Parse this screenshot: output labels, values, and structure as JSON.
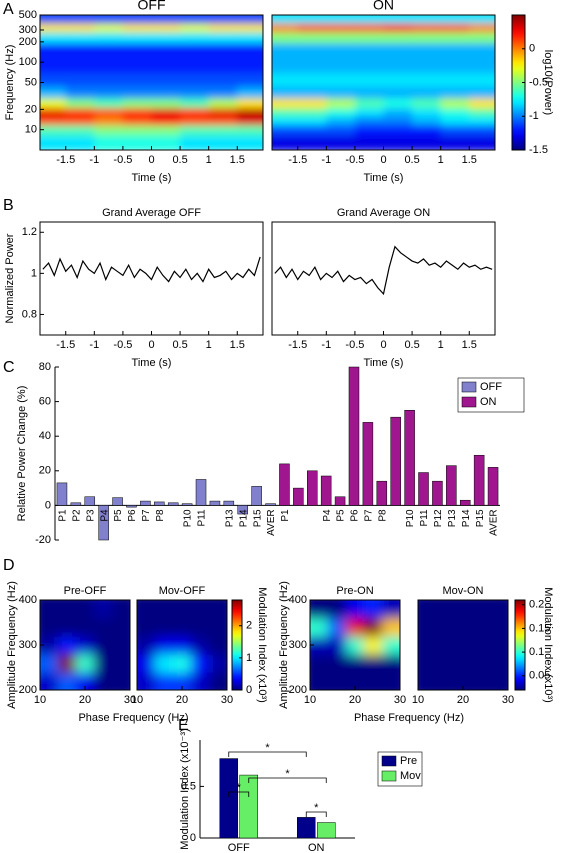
{
  "chart_data": [
    {
      "type": "heatmap",
      "panel_label": "A",
      "x": [
        -1.75,
        -1.25,
        -0.75,
        -0.25,
        0.25,
        0.75,
        1.25,
        1.75
      ],
      "y": [
        7,
        10,
        14,
        18,
        25,
        35,
        55,
        90,
        150,
        250,
        320,
        450
      ],
      "xlim": [
        -1.95,
        1.95
      ],
      "ylim": [
        5,
        500
      ],
      "ylog": true,
      "xticks": [
        -1.5,
        -1,
        -0.5,
        0,
        0.5,
        1,
        1.5
      ],
      "yticks": [
        10,
        20,
        50,
        100,
        200,
        300,
        500
      ],
      "xlabel": "Time (s)",
      "ylabel": "Frequency (Hz)",
      "panels": [
        {
          "title": "OFF",
          "z": [
            [
              -0.8,
              -0.8,
              -0.7,
              -0.7,
              -0.7,
              -0.8,
              -0.8,
              -0.8
            ],
            [
              -0.6,
              -0.6,
              -0.5,
              -0.5,
              -0.5,
              -0.6,
              -0.6,
              -0.6
            ],
            [
              0.1,
              0.1,
              0.0,
              0.1,
              0.2,
              0.1,
              0.1,
              0.3
            ],
            [
              0.3,
              0.2,
              0.1,
              0.2,
              0.3,
              0.2,
              0.3,
              0.4
            ],
            [
              -0.3,
              -0.5,
              -0.6,
              -0.5,
              -0.5,
              -0.6,
              -0.4,
              -0.2
            ],
            [
              -0.9,
              -1.0,
              -1.0,
              -1.0,
              -1.0,
              -1.0,
              -1.0,
              -0.9
            ],
            [
              -1.1,
              -1.1,
              -1.1,
              -1.1,
              -1.1,
              -1.1,
              -1.1,
              -1.1
            ],
            [
              -1.2,
              -1.2,
              -1.2,
              -1.2,
              -1.2,
              -1.2,
              -1.2,
              -1.2
            ],
            [
              -1.2,
              -1.2,
              -1.2,
              -1.2,
              -1.2,
              -1.2,
              -1.2,
              -1.2
            ],
            [
              -0.8,
              -0.8,
              -0.8,
              -0.8,
              -0.8,
              -0.8,
              -0.8,
              -0.8
            ],
            [
              -0.2,
              -0.2,
              -0.3,
              -0.2,
              -0.2,
              -0.3,
              -0.2,
              -0.2
            ],
            [
              -1.1,
              -1.1,
              -1.1,
              -1.1,
              -1.1,
              -1.1,
              -1.1,
              -1.1
            ]
          ]
        },
        {
          "title": "ON",
          "z": [
            [
              -1.3,
              -1.3,
              -1.3,
              -1.3,
              -1.3,
              -1.3,
              -1.3,
              -1.3
            ],
            [
              -1.1,
              -1.1,
              -1.1,
              -1.2,
              -1.2,
              -1.2,
              -1.1,
              -1.1
            ],
            [
              -0.8,
              -0.8,
              -0.9,
              -1.0,
              -1.0,
              -0.9,
              -0.8,
              -0.8
            ],
            [
              -0.6,
              -0.6,
              -0.7,
              -0.8,
              -0.9,
              -0.8,
              -0.7,
              -0.6
            ],
            [
              -0.2,
              -0.2,
              -0.4,
              -0.6,
              -0.7,
              -0.6,
              -0.4,
              -0.2
            ],
            [
              -0.9,
              -0.9,
              -0.9,
              -0.9,
              -0.9,
              -0.9,
              -0.9,
              -0.9
            ],
            [
              -0.8,
              -0.8,
              -0.8,
              -0.8,
              -0.8,
              -0.8,
              -0.8,
              -0.8
            ],
            [
              -0.9,
              -0.9,
              -0.9,
              -0.9,
              -0.9,
              -0.9,
              -0.9,
              -0.9
            ],
            [
              -0.9,
              -0.9,
              -0.9,
              -0.9,
              -0.9,
              -0.9,
              -0.9,
              -0.9
            ],
            [
              -0.5,
              -0.5,
              -0.5,
              -0.5,
              -0.5,
              -0.5,
              -0.5,
              -0.5
            ],
            [
              0.0,
              0.1,
              0.1,
              0.1,
              0.2,
              0.1,
              0.1,
              0.0
            ],
            [
              -0.8,
              -0.8,
              -0.8,
              -0.8,
              -0.8,
              -0.8,
              -0.8,
              -0.8
            ]
          ]
        }
      ],
      "colorbar": {
        "lim": [
          -1.5,
          0.5
        ],
        "ticks": [
          -1.5,
          -1,
          -0.5,
          0
        ],
        "label": "log10(Power)"
      }
    },
    {
      "type": "line",
      "panel_label": "B",
      "x": [
        -1.9,
        -1.8,
        -1.7,
        -1.6,
        -1.5,
        -1.4,
        -1.3,
        -1.2,
        -1.1,
        -1.0,
        -0.9,
        -0.8,
        -0.7,
        -0.6,
        -0.5,
        -0.4,
        -0.3,
        -0.2,
        -0.1,
        0.0,
        0.1,
        0.2,
        0.3,
        0.4,
        0.5,
        0.6,
        0.7,
        0.8,
        0.9,
        1.0,
        1.1,
        1.2,
        1.3,
        1.4,
        1.5,
        1.6,
        1.7,
        1.8,
        1.9
      ],
      "xlim": [
        -1.95,
        1.95
      ],
      "ylim": [
        0.7,
        1.25
      ],
      "xticks": [
        -1.5,
        -1,
        -0.5,
        0,
        0.5,
        1,
        1.5
      ],
      "yticks": [
        0.8,
        1,
        1.2
      ],
      "xlabel": "Time (s)",
      "ylabel": "Normalized Power",
      "color": "#000000",
      "panels": [
        {
          "title": "Grand Average OFF",
          "values": [
            1.02,
            1.05,
            0.99,
            1.07,
            1.01,
            1.04,
            0.98,
            1.06,
            1.02,
            1.0,
            1.05,
            0.97,
            1.03,
            1.01,
            0.99,
            1.04,
            0.98,
            1.02,
            1.0,
            0.97,
            1.03,
            0.99,
            0.96,
            1.01,
            0.98,
            1.02,
            0.97,
            1.0,
            0.96,
            1.02,
            0.98,
            0.99,
            1.01,
            0.97,
            1.0,
            0.98,
            1.02,
            0.99,
            1.08
          ]
        },
        {
          "title": "Grand Average ON",
          "values": [
            1.0,
            1.03,
            0.98,
            1.02,
            0.97,
            1.01,
            0.99,
            1.03,
            0.97,
            1.0,
            0.98,
            1.01,
            0.96,
            0.99,
            0.97,
            0.98,
            0.95,
            0.97,
            0.93,
            0.9,
            1.03,
            1.13,
            1.1,
            1.08,
            1.06,
            1.05,
            1.07,
            1.04,
            1.05,
            1.03,
            1.06,
            1.04,
            1.02,
            1.05,
            1.03,
            1.04,
            1.02,
            1.03,
            1.02
          ]
        }
      ]
    },
    {
      "type": "bar",
      "panel_label": "C",
      "categories": [
        "P1",
        "P2",
        "P3",
        "P4",
        "P5",
        "P6",
        "P7",
        "P8",
        null,
        "P10",
        "P11",
        null,
        "P13",
        "P14",
        "P15",
        "AVER",
        "P1",
        null,
        null,
        "P4",
        "P5",
        "P6",
        "P7",
        "P8",
        null,
        "P10",
        "P11",
        "P12",
        "P13",
        "P14",
        "P15",
        "AVER"
      ],
      "series": [
        {
          "name": "OFF",
          "color": "#8080cc",
          "values": [
            13,
            1.5,
            5,
            -20,
            4.5,
            -1,
            2.5,
            2,
            1.5,
            1,
            15,
            2.5,
            2.5,
            -5,
            11,
            1,
            null,
            null,
            null,
            null,
            null,
            null,
            null,
            null,
            null,
            null,
            null,
            null,
            null,
            null,
            null,
            null
          ]
        },
        {
          "name": "ON",
          "color": "#a0168e",
          "values": [
            null,
            null,
            null,
            null,
            null,
            null,
            null,
            null,
            null,
            null,
            null,
            null,
            null,
            null,
            null,
            null,
            24,
            10,
            20,
            17,
            5,
            80,
            48,
            14,
            51,
            55,
            19,
            14,
            23,
            3,
            29,
            22
          ]
        }
      ],
      "ylim": [
        -20,
        80
      ],
      "yticks": [
        -20,
        0,
        20,
        40,
        60,
        80
      ],
      "ylabel": "Relative Power Change (%)",
      "legend": "top-right"
    },
    {
      "type": "heatmap",
      "panel_label": "D",
      "x": [
        12,
        16,
        20,
        24,
        28
      ],
      "y": [
        220,
        260,
        300,
        340,
        380
      ],
      "xlim": [
        10,
        30
      ],
      "ylim": [
        200,
        400
      ],
      "xticks": [
        10,
        20,
        30
      ],
      "yticks": [
        200,
        300,
        400
      ],
      "xlabel": "Phase Frequency (Hz)",
      "ylabel": "Amplitude Frequency (Hz)",
      "panels": [
        {
          "title": "Pre-OFF",
          "z": [
            [
              0.2,
              0.6,
              0.3,
              0,
              0
            ],
            [
              0.6,
              2.8,
              1.2,
              0,
              0
            ],
            [
              0.1,
              0.4,
              0.2,
              0,
              0
            ],
            [
              0,
              0,
              0,
              0,
              0
            ],
            [
              0,
              0,
              0,
              0.1,
              0
            ]
          ]
        },
        {
          "title": "Mov-OFF",
          "z": [
            [
              0.2,
              0.5,
              0.5,
              0.2,
              0
            ],
            [
              0.3,
              1.0,
              1.1,
              0.4,
              0.1
            ],
            [
              0.1,
              0.3,
              0.3,
              0.1,
              0
            ],
            [
              0,
              0,
              0,
              0,
              0
            ],
            [
              0,
              0,
              0,
              0,
              0
            ]
          ]
        }
      ],
      "colorbar": {
        "lim": [
          0,
          2.8
        ],
        "ticks": [
          0,
          1,
          2
        ],
        "label": "Modulation Index (x10³)"
      }
    },
    {
      "type": "heatmap",
      "x": [
        12,
        16,
        20,
        24,
        28
      ],
      "y": [
        220,
        260,
        300,
        340,
        380
      ],
      "xlim": [
        10,
        30
      ],
      "ylim": [
        200,
        400
      ],
      "xticks": [
        10,
        20,
        30
      ],
      "yticks": [
        200,
        300,
        400
      ],
      "xlabel": "Phase Frequency (Hz)",
      "ylabel": "Amplitude Frequency (Hz)",
      "panels": [
        {
          "title": "Pre-ON",
          "z": [
            [
              0.02,
              0.02,
              0.02,
              0.02,
              0.02
            ],
            [
              0.02,
              0.02,
              0.02,
              0.02,
              0.02
            ],
            [
              0.03,
              0.03,
              0.1,
              0.14,
              0.1
            ],
            [
              0.1,
              0.06,
              0.19,
              0.21,
              0.15
            ],
            [
              0.02,
              0.02,
              0.04,
              0.05,
              0.03
            ]
          ]
        },
        {
          "title": "Mov-ON",
          "z": [
            [
              0.02,
              0.02,
              0.02,
              0.02,
              0.02
            ],
            [
              0.02,
              0.02,
              0.02,
              0.02,
              0.02
            ],
            [
              0.02,
              0.02,
              0.02,
              0.02,
              0.02
            ],
            [
              0.02,
              0.02,
              0.02,
              0.02,
              0.02
            ],
            [
              0.02,
              0.02,
              0.02,
              0.02,
              0.02
            ]
          ]
        }
      ],
      "colorbar": {
        "lim": [
          0.02,
          0.21
        ],
        "ticks": [
          0.05,
          0.1,
          0.15,
          0.2
        ],
        "label": "Modulation Index (x10³)"
      }
    },
    {
      "type": "bar",
      "panel_label": "E",
      "categories": [
        "OFF",
        "ON"
      ],
      "series": [
        {
          "name": "Pre",
          "color": "#00008b",
          "values": [
            0.77,
            0.2
          ]
        },
        {
          "name": "Mov",
          "color": "#66ee66",
          "values": [
            0.61,
            0.15
          ]
        }
      ],
      "ylim": [
        0,
        0.95
      ],
      "yticks": [
        0,
        0.5
      ],
      "ylabel": "Modulation Index (x10⁻³)",
      "legend": "right",
      "annotations": [
        "*",
        "*",
        "*",
        "*"
      ]
    }
  ]
}
